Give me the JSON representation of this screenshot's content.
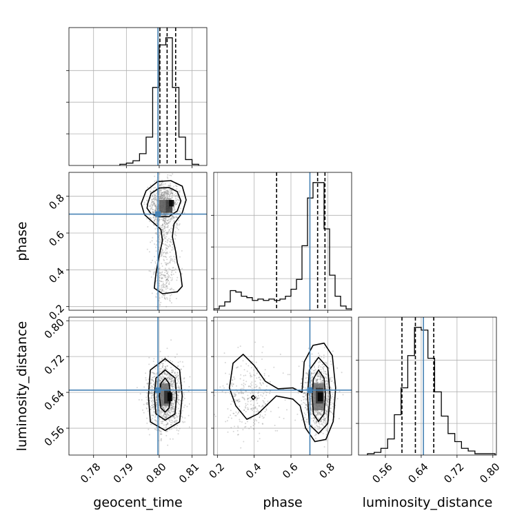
{
  "colors": {
    "truth": "#4682b4",
    "hist": "#000000",
    "grid": "#b0b0b0",
    "points": "#888888"
  },
  "chart_data": {
    "type": "corner",
    "parameters": [
      "geocent_time",
      "phase",
      "luminosity_distance"
    ],
    "axis_labels": {
      "geocent_time": "geocent_time",
      "phase": "phase",
      "luminosity_distance": "luminosity_distance"
    },
    "ranges": {
      "geocent_time": [
        0.7725,
        0.8145
      ],
      "phase": [
        0.18,
        0.93
      ],
      "luminosity_distance": [
        0.5,
        0.808
      ]
    },
    "ticks": {
      "geocent_time": [
        {
          "value": 0.78,
          "label": "0.78"
        },
        {
          "value": 0.79,
          "label": "0.79"
        },
        {
          "value": 0.8,
          "label": "0.80"
        },
        {
          "value": 0.81,
          "label": "0.81"
        }
      ],
      "phase": [
        {
          "value": 0.2,
          "label": "0.2"
        },
        {
          "value": 0.4,
          "label": "0.4"
        },
        {
          "value": 0.6,
          "label": "0.6"
        },
        {
          "value": 0.8,
          "label": "0.8"
        }
      ],
      "luminosity_distance": [
        {
          "value": 0.56,
          "label": "0.56"
        },
        {
          "value": 0.64,
          "label": "0.64"
        },
        {
          "value": 0.72,
          "label": "0.72"
        },
        {
          "value": 0.8,
          "label": "0.80"
        }
      ]
    },
    "truths": {
      "geocent_time": 0.7996,
      "phase": 0.703,
      "luminosity_distance": 0.645
    },
    "quantiles": {
      "geocent_time": [
        0.8002,
        0.8024,
        0.805
      ],
      "phase": [
        0.522,
        0.745,
        0.785
      ],
      "luminosity_distance": [
        0.597,
        0.627,
        0.668
      ]
    },
    "histograms": {
      "geocent_time": {
        "edges": [
          0.788,
          0.79,
          0.792,
          0.794,
          0.796,
          0.798,
          0.8,
          0.802,
          0.804,
          0.806,
          0.808,
          0.81,
          0.812
        ],
        "counts": [
          1,
          2,
          4,
          10,
          24,
          66,
          102,
          108,
          66,
          24,
          5,
          1
        ]
      },
      "phase": {
        "edges": [
          0.18,
          0.21,
          0.24,
          0.27,
          0.3,
          0.33,
          0.36,
          0.39,
          0.42,
          0.45,
          0.48,
          0.51,
          0.54,
          0.57,
          0.6,
          0.63,
          0.66,
          0.69,
          0.72,
          0.75,
          0.78,
          0.81,
          0.84,
          0.87,
          0.9,
          0.93
        ],
        "counts": [
          1,
          3,
          6,
          14,
          13,
          10,
          9,
          7,
          8,
          7,
          8,
          7,
          8,
          10,
          15,
          22,
          46,
          80,
          91,
          91,
          58,
          25,
          10,
          3,
          1
        ]
      },
      "luminosity_distance": {
        "edges": [
          0.52,
          0.535,
          0.55,
          0.565,
          0.58,
          0.595,
          0.61,
          0.625,
          0.64,
          0.655,
          0.67,
          0.685,
          0.7,
          0.715,
          0.73,
          0.745,
          0.76,
          0.775,
          0.79,
          0.805
        ],
        "counts": [
          1,
          2,
          5,
          12,
          30,
          50,
          74,
          95,
          93,
          72,
          47,
          29,
          16,
          10,
          5,
          3,
          1,
          1,
          1
        ]
      }
    },
    "pairs": [
      {
        "x": "geocent_time",
        "y": "phase",
        "density": [
          {
            "x": 0.8015,
            "y": 0.755,
            "sx": 0.0022,
            "sy": 0.055,
            "w": 0.7
          },
          {
            "x": 0.8015,
            "y": 0.62,
            "sx": 0.0018,
            "sy": 0.06,
            "w": 0.1
          },
          {
            "x": 0.8015,
            "y": 0.45,
            "sx": 0.002,
            "sy": 0.08,
            "w": 0.1
          },
          {
            "x": 0.8015,
            "y": 0.32,
            "sx": 0.002,
            "sy": 0.06,
            "w": 0.1
          }
        ],
        "dark_cells": [
          {
            "x0": 0.8,
            "x1": 0.802,
            "y0": 0.71,
            "y1": 0.78,
            "level": 0.55
          },
          {
            "x0": 0.802,
            "x1": 0.804,
            "y0": 0.71,
            "y1": 0.78,
            "level": 0.75
          },
          {
            "x0": 0.803,
            "x1": 0.8045,
            "y0": 0.745,
            "y1": 0.78,
            "level": 1.0
          }
        ],
        "contours": [
          [
            [
              0.7965,
              0.76
            ],
            [
              0.7975,
              0.815
            ],
            [
              0.8,
              0.845
            ],
            [
              0.803,
              0.848
            ],
            [
              0.8055,
              0.825
            ],
            [
              0.8066,
              0.775
            ],
            [
              0.8055,
              0.72
            ],
            [
              0.803,
              0.69
            ],
            [
              0.8,
              0.688
            ],
            [
              0.7975,
              0.705
            ],
            [
              0.7963,
              0.735
            ]
          ],
          [
            [
              0.7945,
              0.76
            ],
            [
              0.796,
              0.83
            ],
            [
              0.7995,
              0.88
            ],
            [
              0.8035,
              0.885
            ],
            [
              0.807,
              0.855
            ],
            [
              0.8082,
              0.78
            ],
            [
              0.807,
              0.71
            ],
            [
              0.8045,
              0.65
            ],
            [
              0.804,
              0.58
            ],
            [
              0.805,
              0.5
            ],
            [
              0.8055,
              0.44
            ],
            [
              0.8065,
              0.38
            ],
            [
              0.807,
              0.31
            ],
            [
              0.8055,
              0.28
            ],
            [
              0.801,
              0.27
            ],
            [
              0.7985,
              0.3
            ],
            [
              0.799,
              0.38
            ],
            [
              0.8,
              0.48
            ],
            [
              0.801,
              0.56
            ],
            [
              0.8005,
              0.62
            ],
            [
              0.798,
              0.66
            ],
            [
              0.7955,
              0.7
            ]
          ]
        ]
      },
      {
        "x": "geocent_time",
        "y": "luminosity_distance",
        "density": [
          {
            "x": 0.8018,
            "y": 0.632,
            "sx": 0.0025,
            "sy": 0.035,
            "w": 1.0
          }
        ],
        "dark_cells": [
          {
            "x0": 0.8,
            "x1": 0.803,
            "y0": 0.61,
            "y1": 0.66,
            "level": 0.45
          },
          {
            "x0": 0.8015,
            "x1": 0.8035,
            "y0": 0.615,
            "y1": 0.645,
            "level": 0.8
          },
          {
            "x0": 0.8025,
            "x1": 0.804,
            "y0": 0.62,
            "y1": 0.64,
            "level": 1.0
          }
        ],
        "contours": [
          [
            [
              0.8,
              0.632
            ],
            [
              0.8005,
              0.66
            ],
            [
              0.8018,
              0.672
            ],
            [
              0.803,
              0.66
            ],
            [
              0.8035,
              0.632
            ],
            [
              0.803,
              0.605
            ],
            [
              0.8018,
              0.596
            ],
            [
              0.8005,
              0.605
            ]
          ],
          [
            [
              0.7985,
              0.632
            ],
            [
              0.799,
              0.672
            ],
            [
              0.8018,
              0.69
            ],
            [
              0.8048,
              0.672
            ],
            [
              0.8053,
              0.632
            ],
            [
              0.8048,
              0.592
            ],
            [
              0.8018,
              0.578
            ],
            [
              0.799,
              0.592
            ]
          ],
          [
            [
              0.7967,
              0.632
            ],
            [
              0.7973,
              0.69
            ],
            [
              0.8018,
              0.715
            ],
            [
              0.8062,
              0.69
            ],
            [
              0.807,
              0.632
            ],
            [
              0.8062,
              0.574
            ],
            [
              0.8018,
              0.555
            ],
            [
              0.7973,
              0.574
            ]
          ]
        ]
      },
      {
        "x": "phase",
        "y": "luminosity_distance",
        "density": [
          {
            "x": 0.75,
            "y": 0.63,
            "sx": 0.04,
            "sy": 0.035,
            "w": 0.75
          },
          {
            "x": 0.38,
            "y": 0.63,
            "sx": 0.08,
            "sy": 0.04,
            "w": 0.25
          }
        ],
        "dark_cells": [
          {
            "x0": 0.72,
            "x1": 0.78,
            "y0": 0.6,
            "y1": 0.66,
            "level": 0.45
          },
          {
            "x0": 0.735,
            "x1": 0.775,
            "y0": 0.615,
            "y1": 0.65,
            "level": 0.75
          },
          {
            "x0": 0.745,
            "x1": 0.775,
            "y0": 0.62,
            "y1": 0.64,
            "level": 1.0
          }
        ],
        "contours": [
          [
            [
              0.715,
              0.632
            ],
            [
              0.722,
              0.67
            ],
            [
              0.75,
              0.69
            ],
            [
              0.78,
              0.672
            ],
            [
              0.788,
              0.632
            ],
            [
              0.78,
              0.592
            ],
            [
              0.75,
              0.575
            ],
            [
              0.722,
              0.592
            ]
          ],
          [
            [
              0.69,
              0.632
            ],
            [
              0.7,
              0.69
            ],
            [
              0.75,
              0.718
            ],
            [
              0.8,
              0.695
            ],
            [
              0.813,
              0.632
            ],
            [
              0.8,
              0.57
            ],
            [
              0.75,
              0.548
            ],
            [
              0.7,
              0.568
            ]
          ],
          [
            [
              0.66,
              0.64
            ],
            [
              0.672,
              0.708
            ],
            [
              0.72,
              0.745
            ],
            [
              0.78,
              0.75
            ],
            [
              0.825,
              0.722
            ],
            [
              0.843,
              0.65
            ],
            [
              0.83,
              0.575
            ],
            [
              0.79,
              0.535
            ],
            [
              0.73,
              0.53
            ],
            [
              0.68,
              0.56
            ],
            [
              0.65,
              0.61
            ],
            [
              0.61,
              0.625
            ],
            [
              0.52,
              0.632
            ],
            [
              0.47,
              0.612
            ],
            [
              0.42,
              0.592
            ],
            [
              0.36,
              0.58
            ],
            [
              0.3,
              0.61
            ],
            [
              0.265,
              0.65
            ],
            [
              0.285,
              0.705
            ],
            [
              0.34,
              0.725
            ],
            [
              0.4,
              0.7
            ],
            [
              0.46,
              0.665
            ],
            [
              0.53,
              0.648
            ],
            [
              0.61,
              0.65
            ]
          ],
          [
            [
              0.385,
              0.629
            ],
            [
              0.395,
              0.633
            ],
            [
              0.405,
              0.628
            ],
            [
              0.395,
              0.624
            ]
          ]
        ]
      }
    ]
  }
}
